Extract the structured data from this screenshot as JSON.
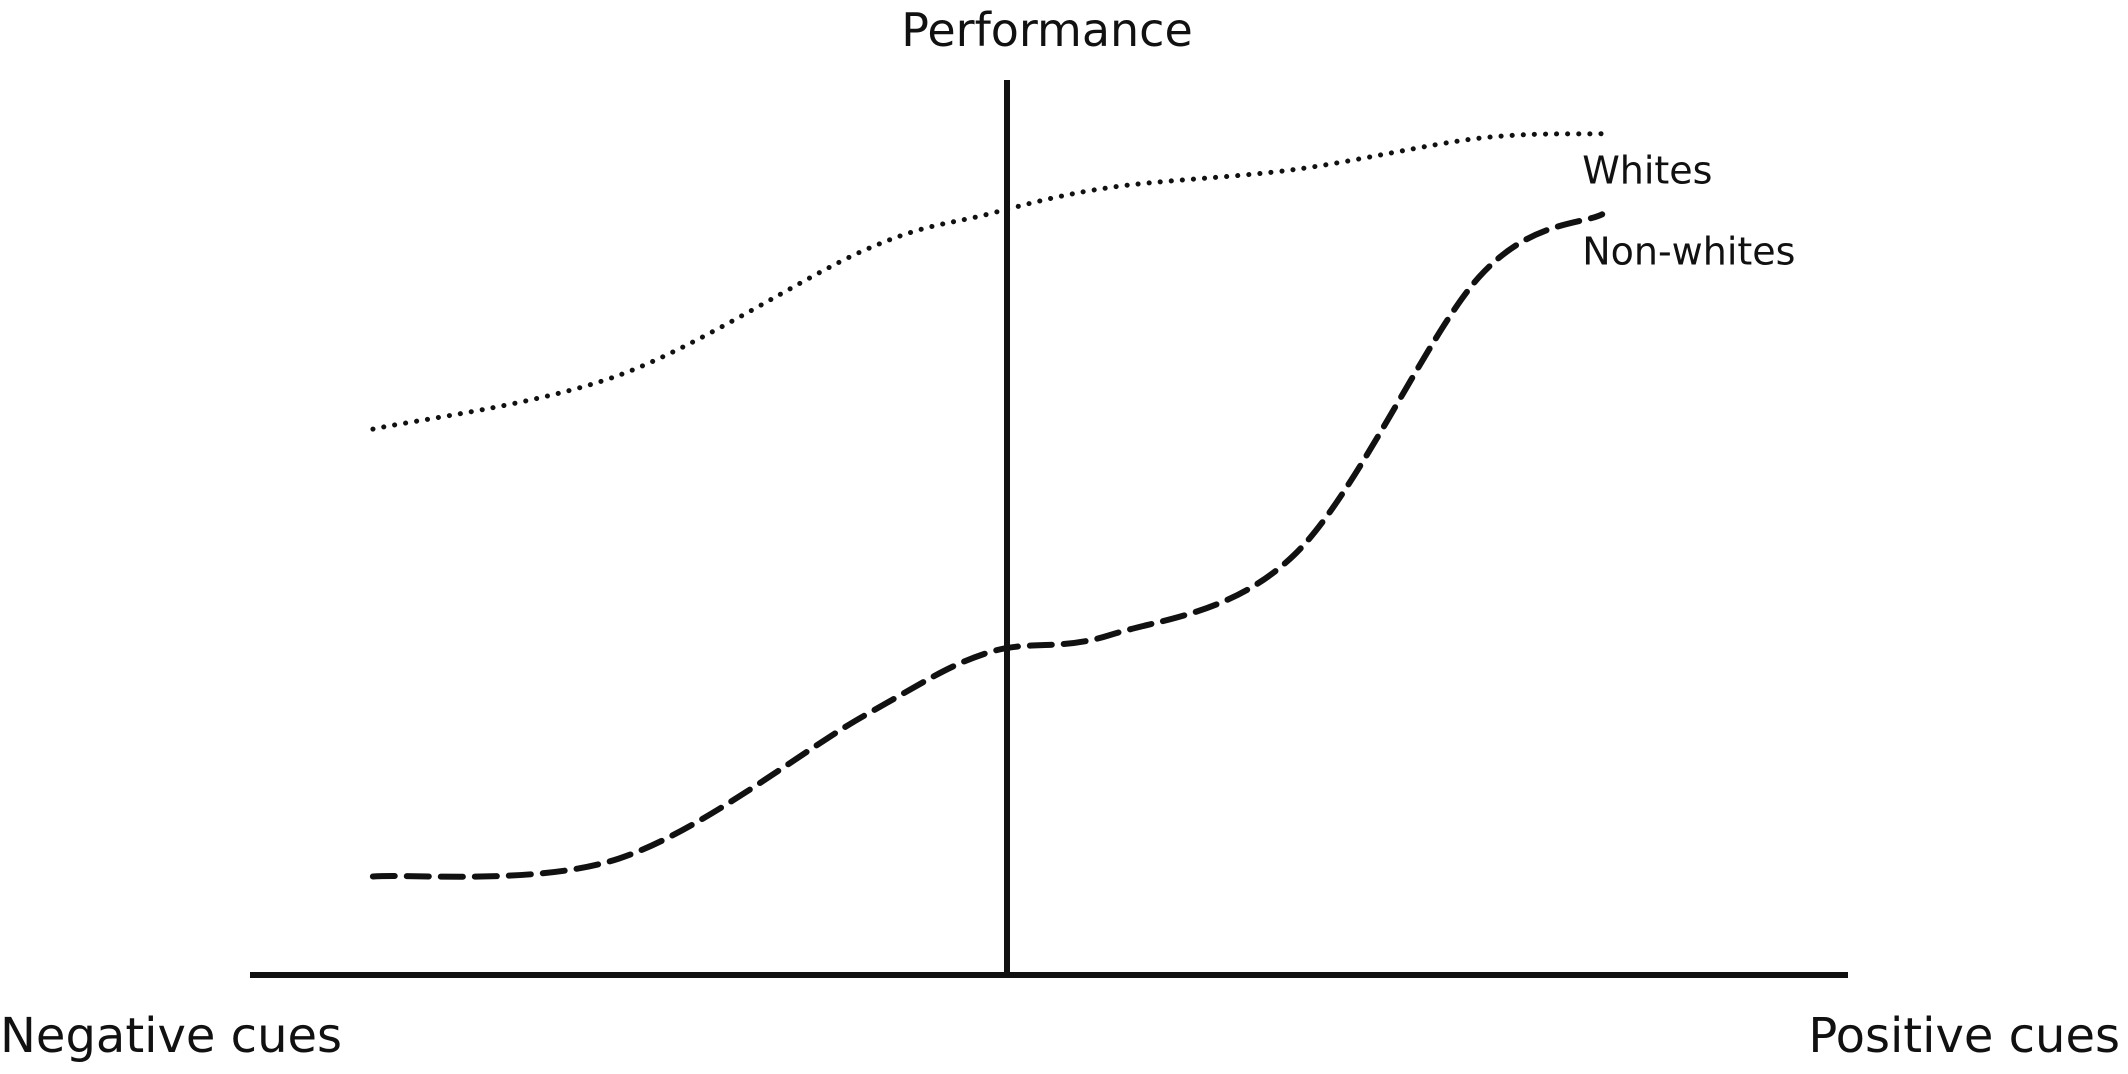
{
  "chart_data": {
    "type": "line",
    "title": "",
    "xlabel_left": "Negative cues",
    "xlabel_right": "Positive cues",
    "ylabel": "Performance",
    "x": [
      -1.0,
      -0.6,
      -0.2,
      0.0,
      0.2,
      0.5,
      0.8,
      1.0
    ],
    "xlim": [
      -1.2,
      1.4
    ],
    "ylim": [
      0,
      10
    ],
    "grid": false,
    "legend": "direct-labels",
    "colors": {
      "axis": "#111111",
      "series": "#111111"
    },
    "series": [
      {
        "name": "Whites",
        "style": "dotted",
        "values": [
          6.1,
          6.7,
          8.1,
          8.5,
          8.8,
          9.0,
          9.35,
          9.4
        ]
      },
      {
        "name": "Non-whites",
        "style": "dashed",
        "values": [
          1.1,
          1.3,
          2.9,
          3.6,
          3.8,
          4.7,
          7.8,
          8.5
        ]
      }
    ]
  }
}
